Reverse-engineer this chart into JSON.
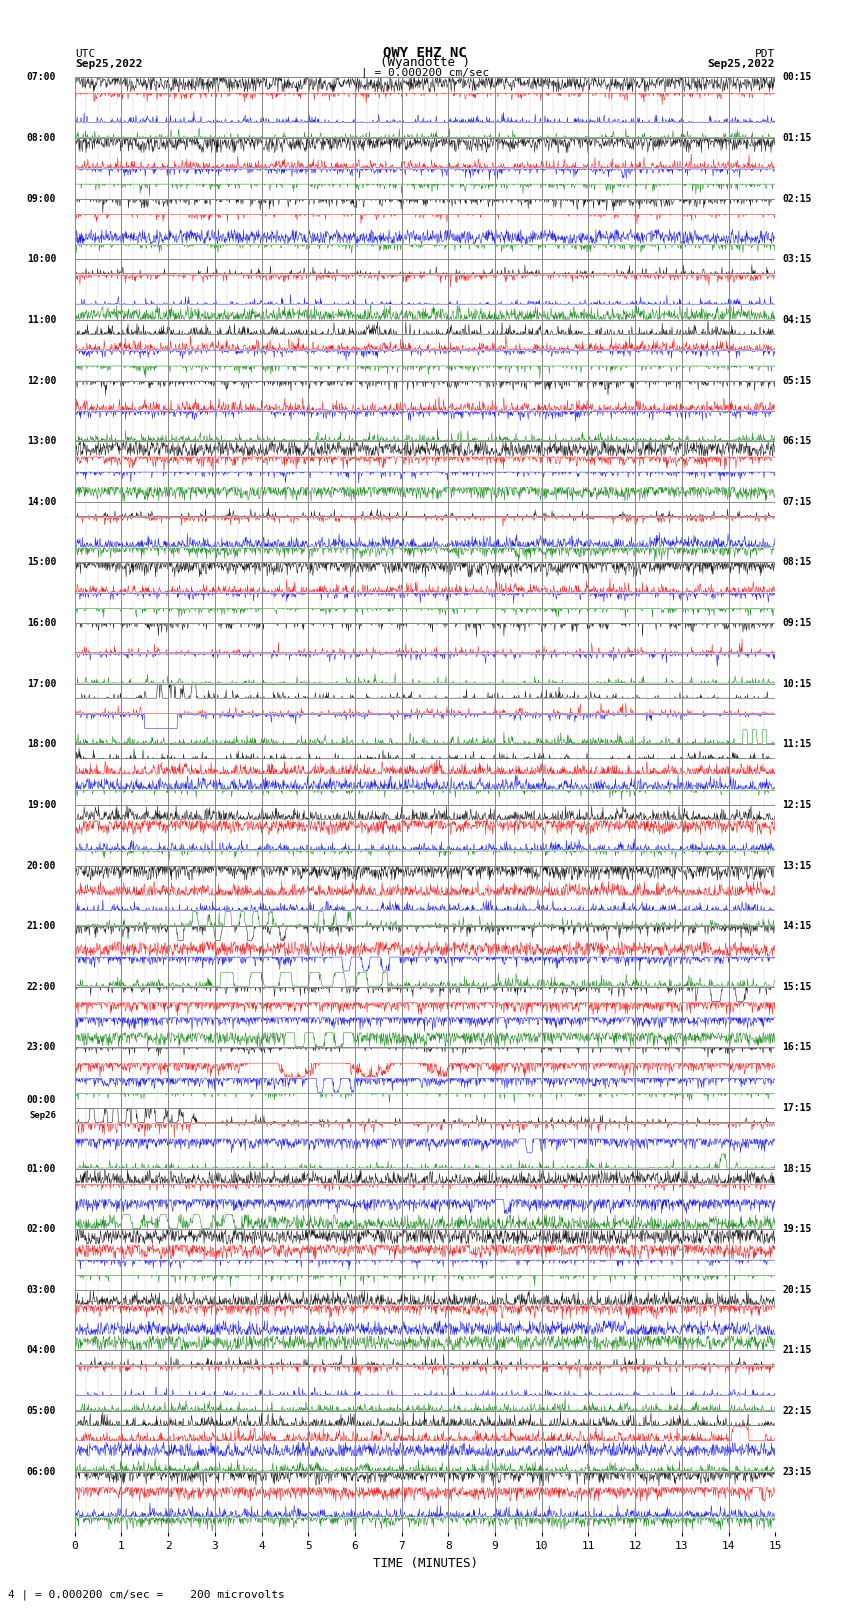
{
  "title_line1": "QWY EHZ NC",
  "title_line2": "(Wyandotte )",
  "scale_label": "| = 0.000200 cm/sec",
  "footer_label": "4 | = 0.000200 cm/sec =    200 microvolts",
  "utc_label": "UTC",
  "utc_date": "Sep25,2022",
  "pdt_label": "PDT",
  "pdt_date": "Sep25,2022",
  "xlabel": "TIME (MINUTES)",
  "left_times": [
    "07:00",
    "08:00",
    "09:00",
    "10:00",
    "11:00",
    "12:00",
    "13:00",
    "14:00",
    "15:00",
    "16:00",
    "17:00",
    "18:00",
    "19:00",
    "20:00",
    "21:00",
    "22:00",
    "23:00",
    "00:00",
    "01:00",
    "02:00",
    "03:00",
    "04:00",
    "05:00",
    "06:00"
  ],
  "right_times": [
    "00:15",
    "01:15",
    "02:15",
    "03:15",
    "04:15",
    "05:15",
    "06:15",
    "07:15",
    "08:15",
    "09:15",
    "10:15",
    "11:15",
    "12:15",
    "13:15",
    "14:15",
    "15:15",
    "16:15",
    "17:15",
    "18:15",
    "19:15",
    "20:15",
    "21:15",
    "22:15",
    "23:15"
  ],
  "n_rows": 24,
  "n_traces_per_row": 4,
  "colors": [
    "black",
    "red",
    "blue",
    "green"
  ],
  "bg_color": "white",
  "grid_color": "#888888",
  "subgrid_color": "#cccccc",
  "figsize": [
    8.5,
    16.13
  ],
  "dpi": 100,
  "xmin": 0,
  "xmax": 15
}
